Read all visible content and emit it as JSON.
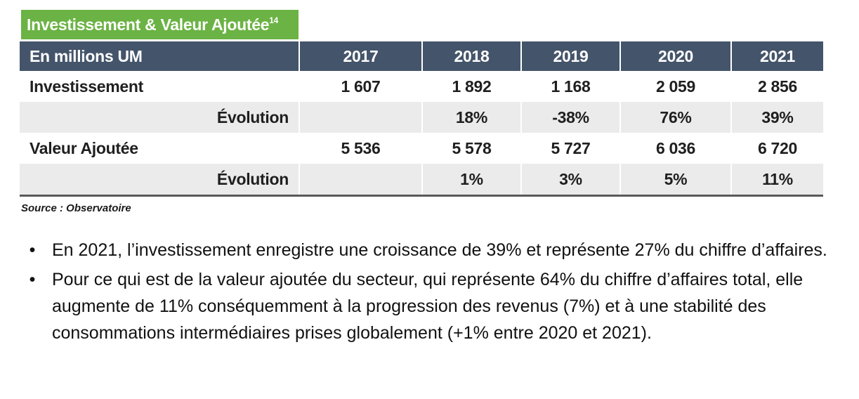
{
  "title": {
    "text": "Investissement & Valeur Ajoutée",
    "footnote": "14"
  },
  "table": {
    "unit_label": "En millions UM",
    "years": [
      "2017",
      "2018",
      "2019",
      "2020",
      "2021"
    ],
    "rows": [
      {
        "label": "Investissement",
        "values": [
          "1 607",
          "1 892",
          "1 168",
          "2 059",
          "2 856"
        ]
      },
      {
        "label": "Évolution",
        "values": [
          "",
          "18%",
          "-38%",
          "76%",
          "39%"
        ]
      },
      {
        "label": "Valeur Ajoutée",
        "values": [
          "5 536",
          "5 578",
          "5 727",
          "6 036",
          "6 720"
        ]
      },
      {
        "label": "Évolution",
        "values": [
          "",
          "1%",
          "3%",
          "5%",
          "11%"
        ]
      }
    ]
  },
  "source": "Source : Observatoire",
  "bullets": [
    "En 2021, l’investissement enregistre une croissance de 39% et représente 27% du chiffre d’affaires.",
    "Pour ce qui est de la valeur ajoutée du secteur, qui représente 64% du chiffre d’affaires total, elle augmente de 11% conséquemment à la progression des revenus (7%) et  à une stabilité des consommations intermédiaires prises globalement (+1% entre 2020 et 2021)."
  ]
}
